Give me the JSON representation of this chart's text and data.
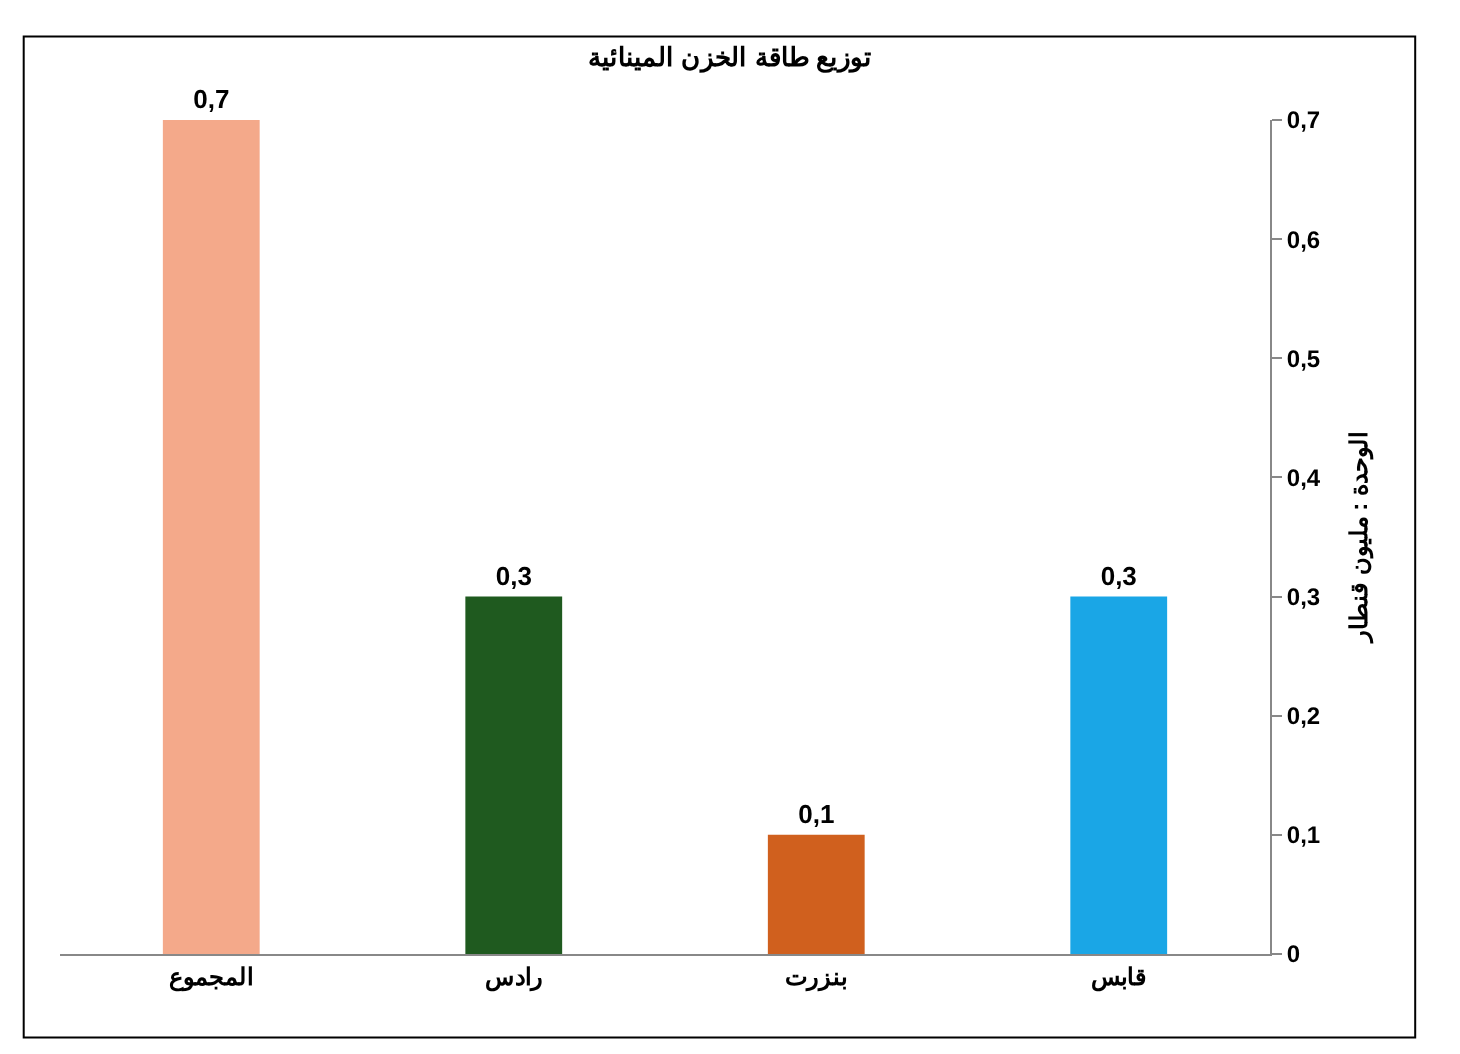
{
  "chart_data": {
    "type": "bar",
    "title": "توزيع طاقة الخزن المينائية",
    "ylabel": "الوحدة : مليون قنطار",
    "categories": [
      "المجموع",
      "رادس",
      "بنزرت",
      "قابس"
    ],
    "values": [
      0.7,
      0.3,
      0.1,
      0.3
    ],
    "colors": [
      "#f4a98a",
      "#1f5a1f",
      "#d0601e",
      "#1aa6e6"
    ],
    "value_labels": [
      "0,7",
      "0,3",
      "0,1",
      "0,3"
    ],
    "ylim": [
      0,
      0.7
    ],
    "yticks": [
      {
        "value": 0,
        "label": "0"
      },
      {
        "value": 0.1,
        "label": "0,1"
      },
      {
        "value": 0.2,
        "label": "0,2"
      },
      {
        "value": 0.3,
        "label": "0,3"
      },
      {
        "value": 0.4,
        "label": "0,4"
      },
      {
        "value": 0.5,
        "label": "0,5"
      },
      {
        "value": 0.6,
        "label": "0,6"
      },
      {
        "value": 0.7,
        "label": "0,7"
      }
    ]
  }
}
